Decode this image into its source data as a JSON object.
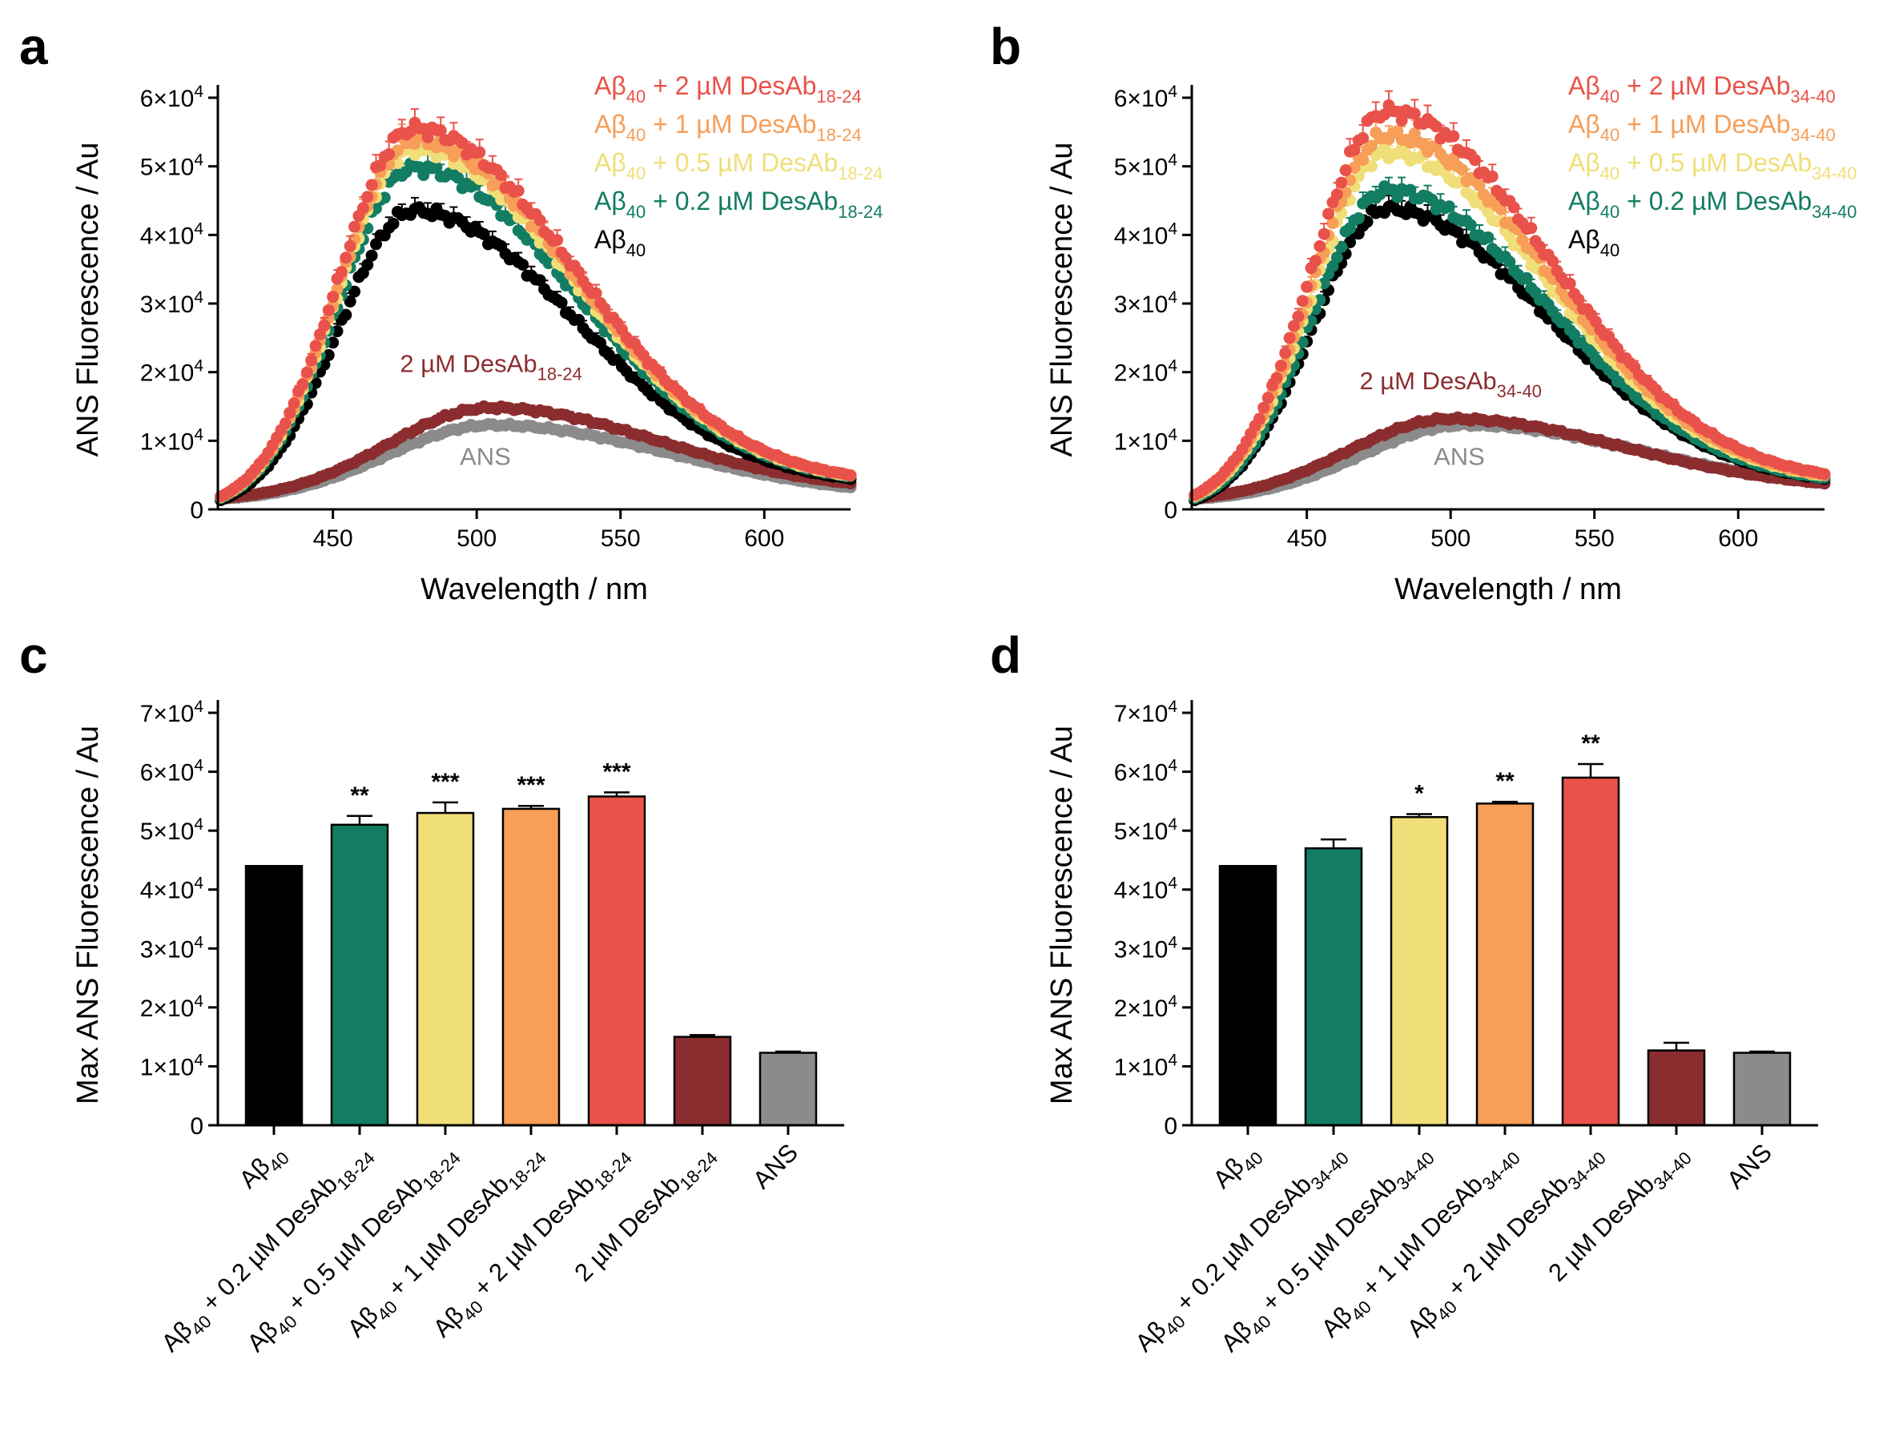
{
  "colors": {
    "c2uM": "#e9524a",
    "c1uM": "#f79e58",
    "c05uM": "#f0de78",
    "c02uM": "#127d62",
    "abeta": "#000000",
    "desab": "#8b2d2f",
    "ans": "#8b8b8b"
  },
  "panels": {
    "a": {
      "letter": "a"
    },
    "b": {
      "letter": "b"
    },
    "c": {
      "letter": "c"
    },
    "d": {
      "letter": "d"
    }
  },
  "chart_data": [
    {
      "panel": "a",
      "type": "scatter",
      "xlabel": "Wavelength / nm",
      "ylabel": "ANS Fluorescence / Au",
      "xlim": [
        410,
        630
      ],
      "ylim": [
        0,
        60000
      ],
      "xticks": [
        450,
        500,
        550,
        600
      ],
      "yticks": [
        {
          "v": 0,
          "base": "0",
          "exp": ""
        },
        {
          "v": 10000,
          "base": "1×10",
          "exp": "4"
        },
        {
          "v": 20000,
          "base": "2×10",
          "exp": "4"
        },
        {
          "v": 30000,
          "base": "3×10",
          "exp": "4"
        },
        {
          "v": 40000,
          "base": "4×10",
          "exp": "4"
        },
        {
          "v": 50000,
          "base": "5×10",
          "exp": "4"
        },
        {
          "v": 60000,
          "base": "6×10",
          "exp": "4"
        }
      ],
      "series": [
        {
          "name": "ANS",
          "color": "ans",
          "peak_x": 505,
          "peak_y": 12300,
          "sigma_left": 36,
          "sigma_right": 62,
          "start_y": 1500,
          "end_y": 3200
        },
        {
          "name": "2 µM DesAb18-24",
          "color": "desab",
          "peak_x": 505,
          "peak_y": 14800,
          "sigma_left": 36,
          "sigma_right": 58,
          "start_y": 1600,
          "end_y": 3800
        },
        {
          "name": "Aβ40",
          "color": "abeta",
          "peak_x": 478,
          "peak_y": 43500,
          "sigma_left": 26,
          "sigma_right": 56,
          "start_y": 1200,
          "end_y": 4500
        },
        {
          "name": "Aβ40 + 0.2 µM DesAb18-24",
          "color": "c02uM",
          "peak_x": 478,
          "peak_y": 49800,
          "sigma_left": 26,
          "sigma_right": 56,
          "start_y": 1500,
          "end_y": 4800
        },
        {
          "name": "Aβ40 + 0.5 µM DesAb18-24",
          "color": "c05uM",
          "peak_x": 478,
          "peak_y": 52500,
          "sigma_left": 26,
          "sigma_right": 56,
          "start_y": 1600,
          "end_y": 4900
        },
        {
          "name": "Aβ40 + 1 µM DesAb18-24",
          "color": "c1uM",
          "peak_x": 478,
          "peak_y": 53800,
          "sigma_left": 26,
          "sigma_right": 56,
          "start_y": 1600,
          "end_y": 5000
        },
        {
          "name": "Aβ40 + 2 µM DesAb18-24",
          "color": "c2uM",
          "peak_x": 478,
          "peak_y": 55500,
          "sigma_left": 26,
          "sigma_right": 56,
          "start_y": 1700,
          "end_y": 5000
        }
      ],
      "legend": [
        {
          "pre": "Aβ",
          "sub1": "40",
          "mid": " + 2 µM DesAb",
          "sub2": "18-24",
          "color": "c2uM"
        },
        {
          "pre": "Aβ",
          "sub1": "40",
          "mid": " + 1 µM DesAb",
          "sub2": "18-24",
          "color": "c1uM"
        },
        {
          "pre": "Aβ",
          "sub1": "40",
          "mid": " + 0.5 µM DesAb",
          "sub2": "18-24",
          "color": "c05uM"
        },
        {
          "pre": "Aβ",
          "sub1": "40",
          "mid": " + 0.2 µM DesAb",
          "sub2": "18-24",
          "color": "c02uM"
        },
        {
          "pre": "Aβ",
          "sub1": "40",
          "mid": "",
          "sub2": "",
          "color": "abeta"
        }
      ],
      "annotations": [
        {
          "pre": "2 µM DesAb",
          "sub": "18-24",
          "color": "desab",
          "x": 505,
          "y": 20000
        },
        {
          "pre": "ANS",
          "sub": "",
          "color": "ans",
          "x": 503,
          "y": 6500
        }
      ]
    },
    {
      "panel": "b",
      "type": "scatter",
      "xlabel": "Wavelength / nm",
      "ylabel": "ANS Fluorescence / Au",
      "xlim": [
        410,
        630
      ],
      "ylim": [
        0,
        60000
      ],
      "xticks": [
        450,
        500,
        550,
        600
      ],
      "yticks": [
        {
          "v": 0,
          "base": "0",
          "exp": ""
        },
        {
          "v": 10000,
          "base": "1×10",
          "exp": "4"
        },
        {
          "v": 20000,
          "base": "2×10",
          "exp": "4"
        },
        {
          "v": 30000,
          "base": "3×10",
          "exp": "4"
        },
        {
          "v": 40000,
          "base": "4×10",
          "exp": "4"
        },
        {
          "v": 50000,
          "base": "5×10",
          "exp": "4"
        },
        {
          "v": 60000,
          "base": "6×10",
          "exp": "4"
        }
      ],
      "series": [
        {
          "name": "ANS",
          "color": "ans",
          "peak_x": 505,
          "peak_y": 12300,
          "sigma_left": 36,
          "sigma_right": 62,
          "start_y": 1500,
          "end_y": 3800
        },
        {
          "name": "2 µM DesAb34-40",
          "color": "desab",
          "peak_x": 500,
          "peak_y": 13200,
          "sigma_left": 36,
          "sigma_right": 60,
          "start_y": 1600,
          "end_y": 3800
        },
        {
          "name": "Aβ40",
          "color": "abeta",
          "peak_x": 478,
          "peak_y": 43800,
          "sigma_left": 26,
          "sigma_right": 56,
          "start_y": 1200,
          "end_y": 4500
        },
        {
          "name": "Aβ40 + 0.2 µM DesAb34-40",
          "color": "c02uM",
          "peak_x": 478,
          "peak_y": 46500,
          "sigma_left": 26,
          "sigma_right": 56,
          "start_y": 1500,
          "end_y": 4600
        },
        {
          "name": "Aβ40 + 0.5 µM DesAb34-40",
          "color": "c05uM",
          "peak_x": 478,
          "peak_y": 52000,
          "sigma_left": 26,
          "sigma_right": 56,
          "start_y": 1700,
          "end_y": 4900
        },
        {
          "name": "Aβ40 + 1 µM DesAb34-40",
          "color": "c1uM",
          "peak_x": 478,
          "peak_y": 54500,
          "sigma_left": 26,
          "sigma_right": 56,
          "start_y": 1800,
          "end_y": 5000
        },
        {
          "name": "Aβ40 + 2 µM DesAb34-40",
          "color": "c2uM",
          "peak_x": 478,
          "peak_y": 58000,
          "sigma_left": 26,
          "sigma_right": 56,
          "start_y": 1900,
          "end_y": 5200
        }
      ],
      "legend": [
        {
          "pre": "Aβ",
          "sub1": "40",
          "mid": " + 2 µM DesAb",
          "sub2": "34-40",
          "color": "c2uM"
        },
        {
          "pre": "Aβ",
          "sub1": "40",
          "mid": " + 1 µM DesAb",
          "sub2": "34-40",
          "color": "c1uM"
        },
        {
          "pre": "Aβ",
          "sub1": "40",
          "mid": " + 0.5 µM DesAb",
          "sub2": "34-40",
          "color": "c05uM"
        },
        {
          "pre": "Aβ",
          "sub1": "40",
          "mid": " + 0.2 µM DesAb",
          "sub2": "34-40",
          "color": "c02uM"
        },
        {
          "pre": "Aβ",
          "sub1": "40",
          "mid": "",
          "sub2": "",
          "color": "abeta"
        }
      ],
      "annotations": [
        {
          "pre": "2 µM DesAb",
          "sub": "34-40",
          "color": "desab",
          "x": 500,
          "y": 17500
        },
        {
          "pre": "ANS",
          "sub": "",
          "color": "ans",
          "x": 503,
          "y": 6500
        }
      ]
    },
    {
      "panel": "c",
      "type": "bar",
      "ylabel": "Max ANS Fluorescence / Au",
      "ylim": [
        0,
        70000
      ],
      "yticks": [
        {
          "v": 0,
          "base": "0",
          "exp": ""
        },
        {
          "v": 10000,
          "base": "1×10",
          "exp": "4"
        },
        {
          "v": 20000,
          "base": "2×10",
          "exp": "4"
        },
        {
          "v": 30000,
          "base": "3×10",
          "exp": "4"
        },
        {
          "v": 40000,
          "base": "4×10",
          "exp": "4"
        },
        {
          "v": 50000,
          "base": "5×10",
          "exp": "4"
        },
        {
          "v": 60000,
          "base": "6×10",
          "exp": "4"
        },
        {
          "v": 70000,
          "base": "7×10",
          "exp": "4"
        }
      ],
      "categories": [
        {
          "pre": "Aβ",
          "sub1": "40",
          "mid": "",
          "sub2": ""
        },
        {
          "pre": "Aβ",
          "sub1": "40",
          "mid": " + 0.2 µM DesAb",
          "sub2": "18-24"
        },
        {
          "pre": "Aβ",
          "sub1": "40",
          "mid": " + 0.5 µM DesAb",
          "sub2": "18-24"
        },
        {
          "pre": "Aβ",
          "sub1": "40",
          "mid": " + 1 µM DesAb",
          "sub2": "18-24"
        },
        {
          "pre": "Aβ",
          "sub1": "40",
          "mid": " + 2 µM DesAb",
          "sub2": "18-24"
        },
        {
          "pre": "2 µM DesAb",
          "sub1": "18-24",
          "mid": "",
          "sub2": ""
        },
        {
          "pre": "ANS",
          "sub1": "",
          "mid": "",
          "sub2": ""
        }
      ],
      "values": [
        44000,
        51000,
        53000,
        53700,
        55800,
        15000,
        12300
      ],
      "errors": [
        0,
        1500,
        1800,
        500,
        700,
        300,
        200
      ],
      "bar_colors": [
        "abeta",
        "c02uM",
        "c05uM",
        "c1uM",
        "c2uM",
        "desab",
        "ans"
      ],
      "significance": [
        "",
        "**",
        "***",
        "***",
        "***",
        "",
        ""
      ]
    },
    {
      "panel": "d",
      "type": "bar",
      "ylabel": "Max ANS Fluorescence / Au",
      "ylim": [
        0,
        70000
      ],
      "yticks": [
        {
          "v": 0,
          "base": "0",
          "exp": ""
        },
        {
          "v": 10000,
          "base": "1×10",
          "exp": "4"
        },
        {
          "v": 20000,
          "base": "2×10",
          "exp": "4"
        },
        {
          "v": 30000,
          "base": "3×10",
          "exp": "4"
        },
        {
          "v": 40000,
          "base": "4×10",
          "exp": "4"
        },
        {
          "v": 50000,
          "base": "5×10",
          "exp": "4"
        },
        {
          "v": 60000,
          "base": "6×10",
          "exp": "4"
        },
        {
          "v": 70000,
          "base": "7×10",
          "exp": "4"
        }
      ],
      "categories": [
        {
          "pre": "Aβ",
          "sub1": "40",
          "mid": "",
          "sub2": ""
        },
        {
          "pre": "Aβ",
          "sub1": "40",
          "mid": " + 0.2 µM DesAb",
          "sub2": "34-40"
        },
        {
          "pre": "Aβ",
          "sub1": "40",
          "mid": " + 0.5 µM DesAb",
          "sub2": "34-40"
        },
        {
          "pre": "Aβ",
          "sub1": "40",
          "mid": " + 1 µM DesAb",
          "sub2": "34-40"
        },
        {
          "pre": "Aβ",
          "sub1": "40",
          "mid": " + 2 µM DesAb",
          "sub2": "34-40"
        },
        {
          "pre": "2 µM DesAb",
          "sub1": "34-40",
          "mid": "",
          "sub2": ""
        },
        {
          "pre": "ANS",
          "sub1": "",
          "mid": "",
          "sub2": ""
        }
      ],
      "values": [
        44000,
        47000,
        52300,
        54600,
        59000,
        12700,
        12300
      ],
      "errors": [
        0,
        1500,
        500,
        300,
        2300,
        1300,
        200
      ],
      "bar_colors": [
        "abeta",
        "c02uM",
        "c05uM",
        "c1uM",
        "c2uM",
        "desab",
        "ans"
      ],
      "significance": [
        "",
        "",
        "*",
        "**",
        "**",
        "",
        ""
      ]
    }
  ]
}
